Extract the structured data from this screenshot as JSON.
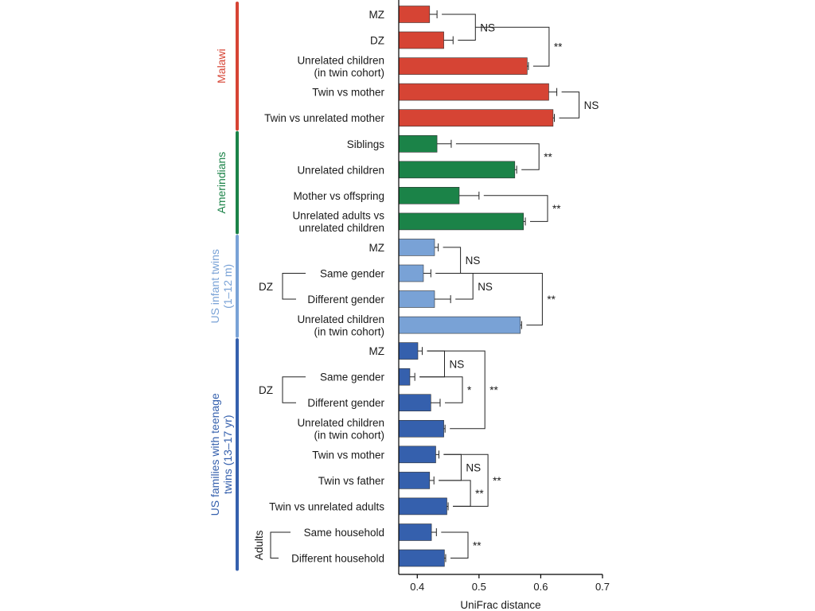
{
  "chart_data": {
    "type": "bar",
    "orientation": "horizontal",
    "xlabel": "UniFrac distance",
    "xlim": [
      0.37,
      0.7
    ],
    "xticks": [
      0.4,
      0.5,
      0.6,
      0.7
    ],
    "groups": [
      {
        "name": "Malawi",
        "color": "#d64434"
      },
      {
        "name": "Amerindians",
        "color": "#1b8348"
      },
      {
        "name": "US infant twins\n(1–12 m)",
        "color": "#79a2d6"
      },
      {
        "name": "US families with teenage\ntwins (13–17 yr)",
        "color": "#3560ad"
      }
    ],
    "bars": [
      {
        "label": "MZ",
        "group": 0,
        "value": 0.42,
        "err": 0.012
      },
      {
        "label": "DZ",
        "group": 0,
        "value": 0.443,
        "err": 0.015
      },
      {
        "label": "Unrelated children\n(in twin cohort)",
        "group": 0,
        "value": 0.578,
        "err": 0.002
      },
      {
        "label": "Twin vs mother",
        "group": 0,
        "value": 0.613,
        "err": 0.013
      },
      {
        "label": "Twin vs unrelated mother",
        "group": 0,
        "value": 0.62,
        "err": 0.002
      },
      {
        "label": "Siblings",
        "group": 1,
        "value": 0.432,
        "err": 0.023
      },
      {
        "label": "Unrelated children",
        "group": 1,
        "value": 0.558,
        "err": 0.003
      },
      {
        "label": "Mother vs offspring",
        "group": 1,
        "value": 0.468,
        "err": 0.032
      },
      {
        "label": "Unrelated adults vs\nunrelated children",
        "group": 1,
        "value": 0.572,
        "err": 0.003
      },
      {
        "label": "MZ",
        "group": 2,
        "value": 0.428,
        "err": 0.006
      },
      {
        "label": "Same gender",
        "group": 2,
        "value": 0.41,
        "err": 0.012
      },
      {
        "label": "Different gender",
        "group": 2,
        "value": 0.428,
        "err": 0.026
      },
      {
        "label": "Unrelated children\n(in twin cohort)",
        "group": 2,
        "value": 0.567,
        "err": 0.002
      },
      {
        "label": "MZ",
        "group": 3,
        "value": 0.401,
        "err": 0.007
      },
      {
        "label": "Same gender",
        "group": 3,
        "value": 0.388,
        "err": 0.008
      },
      {
        "label": "Different gender",
        "group": 3,
        "value": 0.422,
        "err": 0.015
      },
      {
        "label": "Unrelated children\n(in twin cohort)",
        "group": 3,
        "value": 0.443,
        "err": 0.002
      },
      {
        "label": "Twin vs mother",
        "group": 3,
        "value": 0.43,
        "err": 0.005
      },
      {
        "label": "Twin vs father",
        "group": 3,
        "value": 0.42,
        "err": 0.007
      },
      {
        "label": "Twin vs unrelated adults",
        "group": 3,
        "value": 0.448,
        "err": 0.002
      },
      {
        "label": "Same household",
        "group": 3,
        "value": 0.423,
        "err": 0.008
      },
      {
        "label": "Different household",
        "group": 3,
        "value": 0.444,
        "err": 0.002
      }
    ],
    "sub_labels": [
      {
        "text": "DZ",
        "bars": [
          10,
          11
        ]
      },
      {
        "text": "DZ",
        "bars": [
          14,
          15
        ]
      },
      {
        "text": "Adults",
        "bars": [
          20,
          21
        ],
        "vertical": true
      }
    ],
    "comparisons": [
      {
        "bars": [
          0,
          1
        ],
        "label": "NS"
      },
      {
        "bars": [
          [
            0,
            1
          ],
          2
        ],
        "label": "**"
      },
      {
        "bars": [
          3,
          4
        ],
        "label": "NS"
      },
      {
        "bars": [
          5,
          6
        ],
        "label": "**"
      },
      {
        "bars": [
          7,
          8
        ],
        "label": "**"
      },
      {
        "bars": [
          9,
          10
        ],
        "label": "NS"
      },
      {
        "bars": [
          10,
          11
        ],
        "label": "NS"
      },
      {
        "bars": [
          [
            9,
            10,
            11
          ],
          12
        ],
        "label": "**"
      },
      {
        "bars": [
          13,
          14
        ],
        "label": "NS"
      },
      {
        "bars": [
          14,
          15
        ],
        "label": "*"
      },
      {
        "bars": [
          13,
          16
        ],
        "label": "**"
      },
      {
        "bars": [
          17,
          18
        ],
        "label": "NS"
      },
      {
        "bars": [
          18,
          19
        ],
        "label": "**"
      },
      {
        "bars": [
          17,
          19
        ],
        "label": "**"
      },
      {
        "bars": [
          20,
          21
        ],
        "label": "**"
      }
    ]
  }
}
